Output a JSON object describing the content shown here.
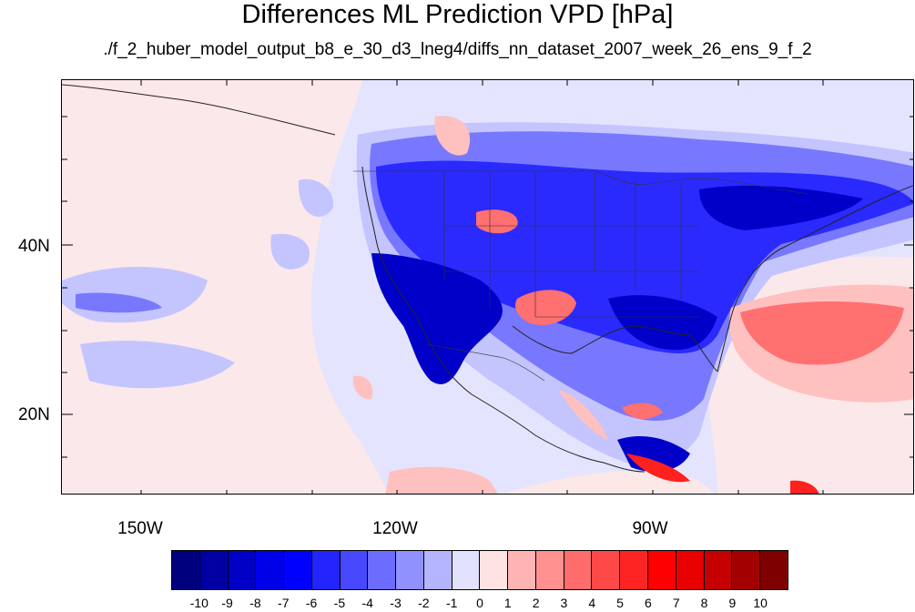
{
  "title": "Differences ML Prediction VPD [hPa]",
  "subtitle": "./f_2_huber_model_output_b8_e_30_d3_lneg4/diffs_nn_dataset_2007_week_26_ens_9_f_2",
  "lat_labels": [
    "40N",
    "20N"
  ],
  "lon_labels": [
    "150W",
    "120W",
    "90W"
  ],
  "colorbar": {
    "colors": [
      "#00007f",
      "#0000a3",
      "#0000c6",
      "#0000e8",
      "#0000ff",
      "#2424ff",
      "#4848ff",
      "#6c6cff",
      "#9090ff",
      "#b4b4ff",
      "#e2e2ff",
      "#ffe2e2",
      "#ffb4b4",
      "#ff9090",
      "#ff6c6c",
      "#ff4848",
      "#ff2424",
      "#ff0000",
      "#e80000",
      "#c60000",
      "#a30000",
      "#7f0000"
    ],
    "labels": [
      "-10",
      "-9",
      "-8",
      "-7",
      "-6",
      "-5",
      "-4",
      "-3",
      "-2",
      "-1",
      "0",
      "1",
      "2",
      "3",
      "4",
      "5",
      "6",
      "7",
      "8",
      "9",
      "10"
    ]
  },
  "colors": {
    "background": "#e4e4ff",
    "ocean_pink": "#fde8e8",
    "light_blue": "#c4c4ff",
    "mid_blue": "#7878ff",
    "strong_blue": "#2a2aff",
    "deep_blue": "#0000c8",
    "light_red": "#ffc0c0",
    "mid_red": "#ff7070",
    "strong_red": "#ff2020"
  }
}
